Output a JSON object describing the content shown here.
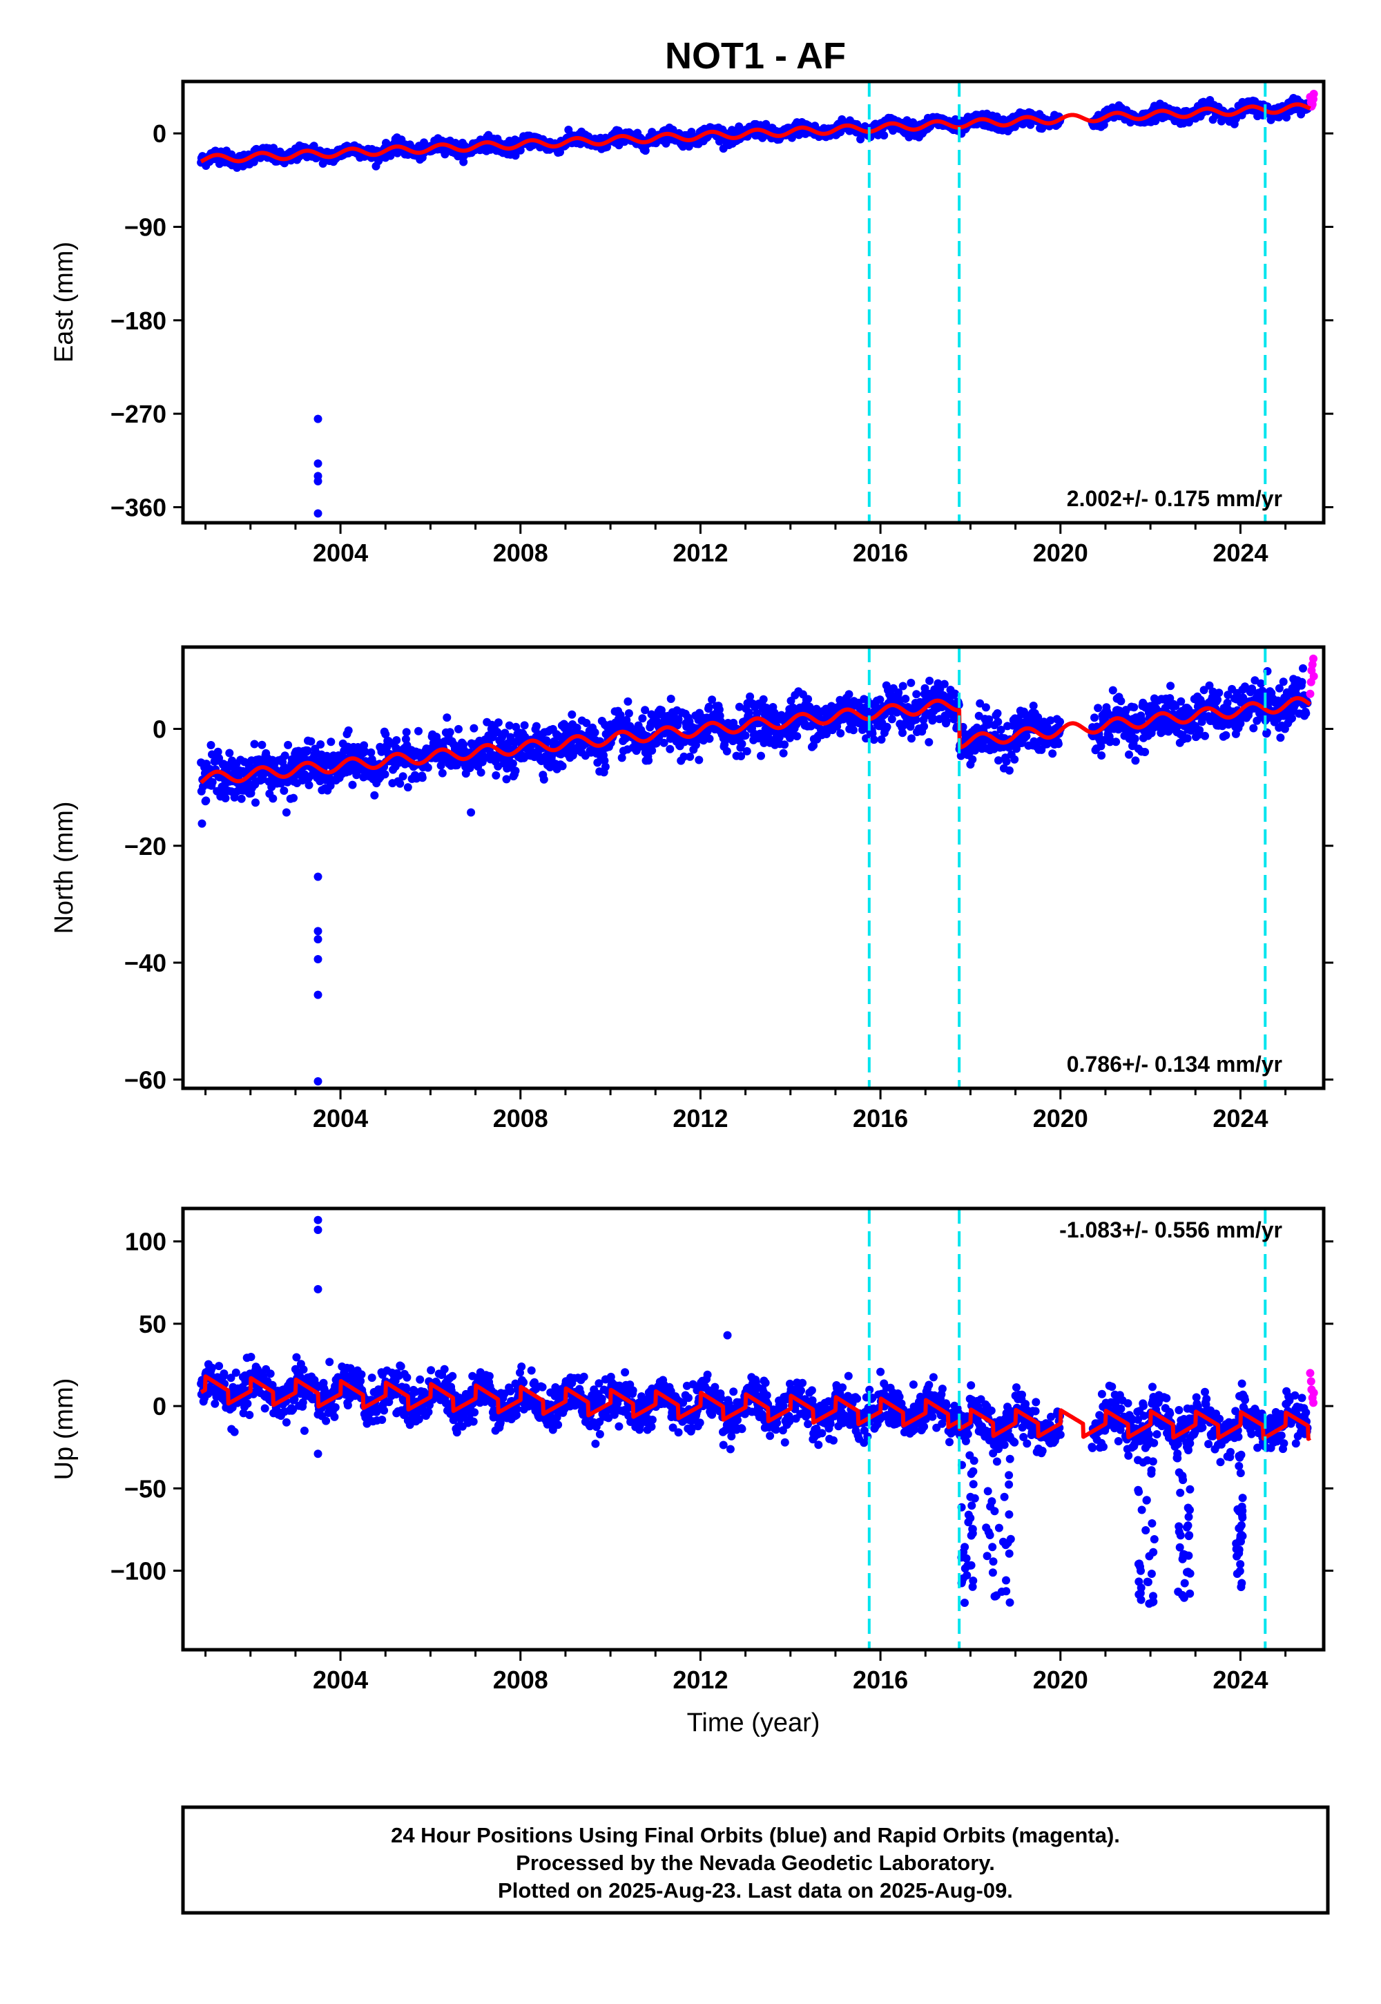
{
  "title": "NOT1 - AF",
  "footer": [
    "24 Hour Positions Using Final Orbits (blue) and Rapid Orbits (magenta).",
    "Processed by the Nevada Geodetic Laboratory.",
    "Plotted on 2025-Aug-23. Last data on 2025-Aug-09."
  ],
  "colors": {
    "final": "#0000ff",
    "rapid": "#ff00ff",
    "model": "#ff0000",
    "event_line": "#00e5ee"
  },
  "chart_data": [
    {
      "type": "scatter",
      "name": "east",
      "ylabel": "East (mm)",
      "xlabel": "",
      "xlim": [
        2000.5,
        2025.85
      ],
      "ylim": [
        -375,
        50
      ],
      "xticks": [
        2004,
        2008,
        2012,
        2016,
        2020,
        2024
      ],
      "yticks": [
        0,
        -90,
        -180,
        -270,
        -360
      ],
      "rate_label": "2.002+/- 0.175 mm/yr",
      "event_lines": [
        2015.75,
        2017.75,
        2024.55
      ],
      "model": {
        "start": 2000.9,
        "end": 2025.55,
        "start_value": -25,
        "end_value": 25,
        "seasonal_amp": 3.5,
        "gap": [
          2020.0,
          2020.7
        ]
      },
      "scatter": {
        "start": 2000.9,
        "end": 2025.5,
        "scatter_sd": 3.2,
        "per_year": 90
      },
      "outliers": [
        [
          2003.5,
          -275
        ],
        [
          2003.5,
          -318
        ],
        [
          2003.5,
          -330
        ],
        [
          2003.5,
          -335
        ],
        [
          2003.5,
          -366
        ]
      ],
      "rapid": [
        [
          2025.55,
          35
        ],
        [
          2025.57,
          30
        ],
        [
          2025.58,
          26
        ],
        [
          2025.6,
          28
        ],
        [
          2025.62,
          33
        ],
        [
          2025.63,
          38
        ]
      ]
    },
    {
      "type": "scatter",
      "name": "north",
      "ylabel": "North (mm)",
      "xlabel": "",
      "xlim": [
        2000.5,
        2025.85
      ],
      "ylim": [
        -61.5,
        14
      ],
      "xticks": [
        2004,
        2008,
        2012,
        2016,
        2020,
        2024
      ],
      "yticks": [
        0,
        -20,
        -40,
        -60
      ],
      "rate_label": "0.786+/- 0.134 mm/yr",
      "event_lines": [
        2015.75,
        2017.75,
        2024.55
      ],
      "model": {
        "segments": [
          [
            2000.9,
            2017.75,
            -8.6,
            4.2
          ],
          [
            2017.75,
            2025.55,
            -2.2,
            4.5
          ]
        ],
        "seasonal_amp": 1.0,
        "gap": [
          2020.0,
          2020.7
        ]
      },
      "scatter": {
        "start": 2000.9,
        "end": 2025.5,
        "scatter_sd": 1.9,
        "per_year": 90
      },
      "outliers": [
        [
          2002.8,
          -14.3
        ],
        [
          2006.9,
          -14.3
        ],
        [
          2003.5,
          -25.3
        ],
        [
          2003.5,
          -34.6
        ],
        [
          2003.5,
          -36.0
        ],
        [
          2003.5,
          -39.4
        ],
        [
          2003.5,
          -45.5
        ],
        [
          2003.5,
          -60.3
        ]
      ],
      "rapid": [
        [
          2025.55,
          6
        ],
        [
          2025.57,
          8
        ],
        [
          2025.58,
          10
        ],
        [
          2025.6,
          11
        ],
        [
          2025.62,
          12
        ],
        [
          2025.63,
          9
        ]
      ]
    },
    {
      "type": "scatter",
      "name": "up",
      "ylabel": "Up (mm)",
      "xlabel": "Time (year)",
      "xlim": [
        2000.5,
        2025.85
      ],
      "ylim": [
        -148,
        120
      ],
      "xticks": [
        2004,
        2008,
        2012,
        2016,
        2020,
        2024
      ],
      "yticks": [
        100,
        50,
        0,
        -50,
        -100
      ],
      "rate_label": "-1.083+/- 0.556 mm/yr",
      "event_lines": [
        2015.75,
        2017.75,
        2024.55
      ],
      "model": {
        "segments": [
          [
            2000.9,
            2017.75,
            10,
            -5
          ],
          [
            2017.75,
            2025.55,
            -10,
            -12
          ]
        ],
        "seasonal_amp": 9,
        "gap": [
          2020.0,
          2020.7
        ]
      },
      "scatter": {
        "start": 2000.9,
        "end": 2025.5,
        "scatter_sd": 6.5,
        "per_year": 90
      },
      "outliers": [
        [
          2003.5,
          113
        ],
        [
          2003.5,
          107
        ],
        [
          2003.5,
          71
        ],
        [
          2003.5,
          -29
        ],
        [
          2003.2,
          -15
        ],
        [
          2012.6,
          43
        ]
      ],
      "drops": [
        [
          2017.8,
          2018.1
        ],
        [
          2018.3,
          2018.9
        ],
        [
          2021.7,
          2022.1
        ],
        [
          2022.6,
          2022.9
        ],
        [
          2023.9,
          2024.05
        ]
      ],
      "rapid": [
        [
          2025.55,
          20
        ],
        [
          2025.57,
          15
        ],
        [
          2025.58,
          10
        ],
        [
          2025.6,
          5
        ],
        [
          2025.62,
          2
        ],
        [
          2025.63,
          8
        ]
      ]
    }
  ]
}
